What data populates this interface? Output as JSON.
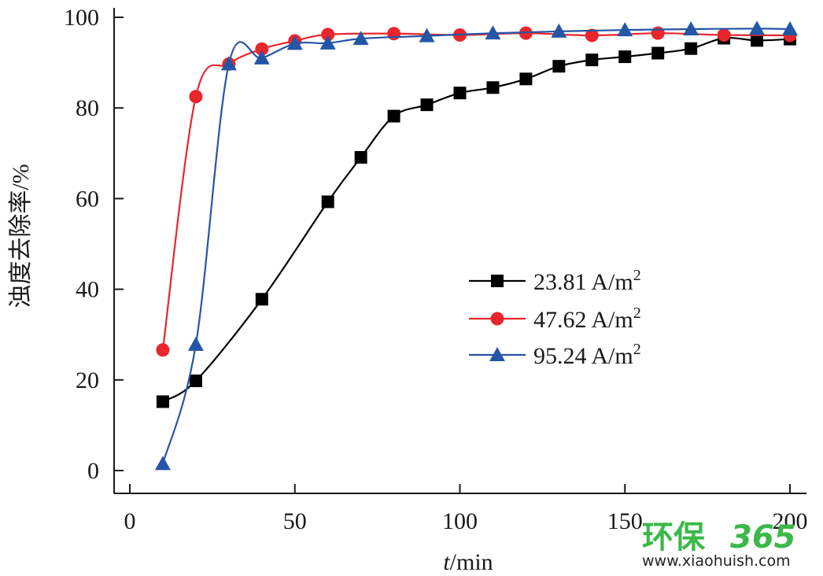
{
  "chart_data": {
    "type": "line",
    "title": "",
    "xlabel": "t/min",
    "xlabel_italic": "t",
    "xlabel_rest": "/min",
    "ylabel": "浊度去除率/%",
    "xlim": [
      -5,
      205
    ],
    "ylim": [
      -5,
      100
    ],
    "xticks": [
      0,
      50,
      100,
      150,
      200
    ],
    "yticks": [
      0,
      20,
      40,
      60,
      80,
      100
    ],
    "grid": false,
    "legend_position": "center-right",
    "series": [
      {
        "name": "23.81 A/m2",
        "label_main": "23.81 A/m",
        "label_sup": "2",
        "color": "#000000",
        "marker": "square",
        "x": [
          10,
          20,
          40,
          60,
          70,
          80,
          90,
          100,
          110,
          120,
          130,
          140,
          150,
          160,
          170,
          180,
          190,
          200
        ],
        "y": [
          15.2,
          19.8,
          37.8,
          59.3,
          69.1,
          78.2,
          80.7,
          83.3,
          84.5,
          86.4,
          89.2,
          90.6,
          91.3,
          92.1,
          93.1,
          95.4,
          94.9,
          95.2
        ]
      },
      {
        "name": "47.62 A/m2",
        "label_main": "47.62 A/m",
        "label_sup": "2",
        "color": "#e8262b",
        "marker": "circle",
        "x": [
          10,
          20,
          30,
          40,
          50,
          60,
          80,
          100,
          120,
          140,
          160,
          180,
          200
        ],
        "y": [
          26.6,
          82.5,
          89.7,
          93.0,
          94.8,
          96.2,
          96.4,
          96.1,
          96.5,
          96.0,
          96.5,
          96.1,
          96.0
        ]
      },
      {
        "name": "95.24 A/m2",
        "label_main": "95.24 A/m",
        "label_sup": "2",
        "color": "#2456a6",
        "marker": "triangle",
        "x": [
          10,
          20,
          30,
          40,
          50,
          60,
          70,
          90,
          110,
          130,
          150,
          170,
          190,
          200
        ],
        "y": [
          1.5,
          27.8,
          89.7,
          91.0,
          94.2,
          94.3,
          95.3,
          95.9,
          96.5,
          96.9,
          97.2,
          97.4,
          97.5,
          97.4
        ]
      }
    ]
  },
  "watermark": {
    "brand_text": "环保",
    "brand_number": "365",
    "url": "www.xiaohuish.com",
    "color": "#3cb84a"
  }
}
